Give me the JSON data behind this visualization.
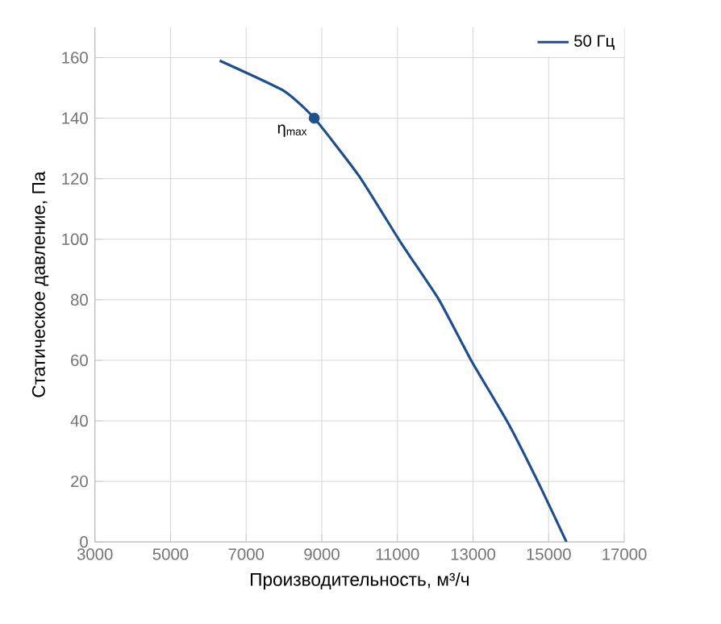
{
  "chart_data": {
    "type": "line",
    "xlabel": "Производительность, м³/ч",
    "ylabel": "Статическое давление, Па",
    "series": [
      {
        "name": "50 Гц",
        "color": "#1f4e8c",
        "x": [
          6300,
          8000,
          8800,
          9980,
          11110,
          12100,
          12950,
          13940,
          14790,
          15470
        ],
        "values": [
          159,
          149,
          140,
          121,
          98.5,
          80,
          60,
          39,
          18,
          0
        ]
      }
    ],
    "annotations": [
      {
        "text": "η$_{max}$",
        "x": 8800,
        "y": 140
      }
    ],
    "xlim": [
      3000,
      17000
    ],
    "xticks": [
      3000,
      5000,
      7000,
      9000,
      11000,
      13000,
      15000,
      17000
    ],
    "ylim": [
      0,
      170
    ],
    "yticks": [
      0,
      20,
      40,
      60,
      80,
      100,
      120,
      140,
      160
    ],
    "grid": true,
    "legend": "top right"
  }
}
